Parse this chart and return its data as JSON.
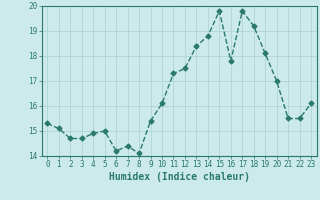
{
  "x": [
    0,
    1,
    2,
    3,
    4,
    5,
    6,
    7,
    8,
    9,
    10,
    11,
    12,
    13,
    14,
    15,
    16,
    17,
    18,
    19,
    20,
    21,
    22,
    23
  ],
  "y": [
    15.3,
    15.1,
    14.7,
    14.7,
    14.9,
    15.0,
    14.2,
    14.4,
    14.1,
    15.4,
    16.1,
    17.3,
    17.5,
    18.4,
    18.8,
    19.8,
    17.8,
    19.8,
    19.2,
    18.1,
    17.0,
    15.5,
    15.5,
    16.1
  ],
  "line_color": "#2a7a6a",
  "marker": "D",
  "markersize": 2.5,
  "bg_color": "#cceaea",
  "grid_color": "#aacfcf",
  "xlabel": "Humidex (Indice chaleur)",
  "ylabel": "",
  "ylim": [
    14,
    20
  ],
  "xlim": [
    -0.5,
    23.5
  ],
  "yticks": [
    14,
    15,
    16,
    17,
    18,
    19,
    20
  ],
  "xticks": [
    0,
    1,
    2,
    3,
    4,
    5,
    6,
    7,
    8,
    9,
    10,
    11,
    12,
    13,
    14,
    15,
    16,
    17,
    18,
    19,
    20,
    21,
    22,
    23
  ],
  "tick_fontsize": 5.5,
  "xlabel_fontsize": 7,
  "linewidth": 1.0
}
